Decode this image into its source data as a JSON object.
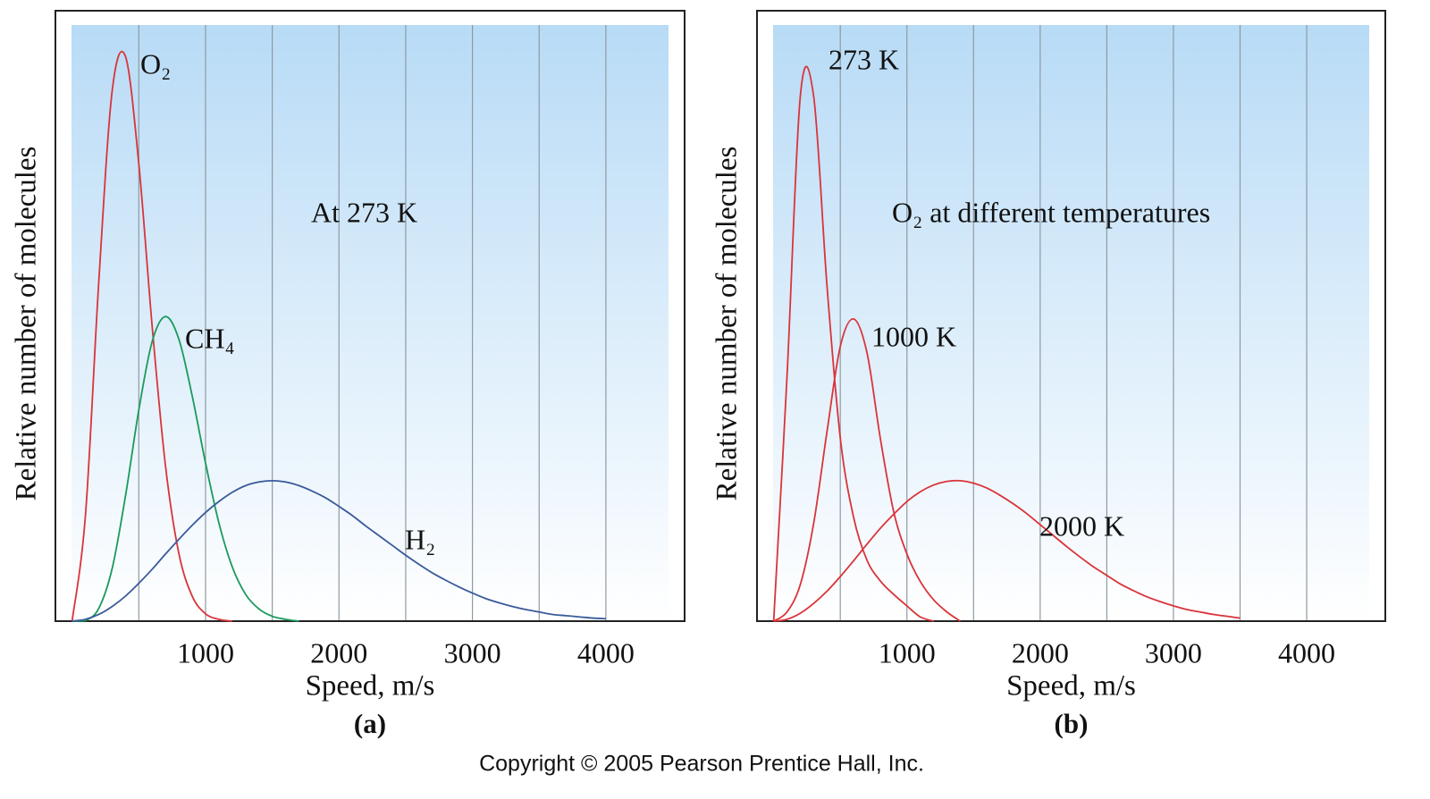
{
  "chart_data": [
    {
      "type": "line",
      "title": "At 273 K",
      "panel_label": "(a)",
      "x_label": "Speed, m/s",
      "y_label": "Relative number of molecules",
      "x": [
        0,
        100,
        200,
        300,
        400,
        500,
        600,
        700,
        800,
        900,
        1000,
        1100,
        1200,
        1300,
        1400,
        1500,
        1600,
        1700,
        1800,
        1900,
        2000,
        2100,
        2200,
        2300,
        2400,
        2500,
        2600,
        2700,
        2800,
        2900,
        3000,
        3100,
        3200,
        3300,
        3400,
        3500,
        3600,
        3700,
        3800,
        3900,
        4000
      ],
      "series": [
        {
          "name": "O₂",
          "color": "#d9343a",
          "values": [
            0,
            17.3,
            55.6,
            86.8,
            92.5,
            74.9,
            48.3,
            25.4,
            11.1,
            4.1,
            1.2,
            0.3,
            0,
            null,
            null,
            null,
            null,
            null,
            null,
            null,
            null,
            null,
            null,
            null,
            null,
            null,
            null,
            null,
            null,
            null,
            null,
            null,
            null,
            null,
            null,
            null,
            null,
            null,
            null,
            null,
            null
          ]
        },
        {
          "name": "CH₄",
          "color": "#1a9a5a",
          "values": [
            0,
            0.1,
            2.1,
            8.6,
            20.5,
            34.6,
            45.8,
            49.9,
            46.2,
            36.9,
            25.9,
            16.1,
            8.9,
            4.4,
            2.0,
            0.8,
            0.3,
            0,
            null,
            null,
            null,
            null,
            null,
            null,
            null,
            null,
            null,
            null,
            null,
            null,
            null,
            null,
            null,
            null,
            null,
            null,
            null,
            null,
            null,
            null,
            null
          ]
        },
        {
          "name": "H₂",
          "color": "#3a5a9a",
          "values": [
            0,
            0.3,
            1.1,
            2.4,
            4.1,
            6.2,
            8.5,
            11.0,
            13.4,
            15.7,
            17.8,
            19.6,
            21.1,
            22.2,
            22.8,
            23.0,
            22.8,
            22.2,
            21.3,
            20.2,
            18.8,
            17.3,
            15.6,
            14.0,
            12.4,
            10.8,
            9.3,
            7.9,
            6.7,
            5.6,
            4.6,
            3.7,
            3.0,
            2.4,
            1.9,
            1.5,
            1.1,
            0.9,
            0.7,
            0.5,
            0.4
          ]
        }
      ],
      "xlim": [
        -125,
        4590
      ],
      "ylim": [
        0,
        100
      ],
      "xticks": [
        1000,
        2000,
        3000,
        4000
      ],
      "xgrid": [
        500,
        1000,
        1500,
        2000,
        2500,
        3000,
        3500,
        4000
      ]
    },
    {
      "type": "line",
      "title": "O₂ at different temperatures",
      "panel_label": "(b)",
      "x_label": "Speed, m/s",
      "y_label": "Relative number of molecules",
      "x": [
        0,
        100,
        200,
        300,
        400,
        500,
        600,
        700,
        800,
        900,
        1000,
        1100,
        1200,
        1300,
        1400,
        1500,
        1600,
        1700,
        1800,
        1900,
        2000,
        2100,
        2200,
        2300,
        2400,
        2500,
        2600,
        2700,
        2800,
        2900,
        3000,
        3100,
        3200,
        3300,
        3400,
        3500,
        3600,
        3700,
        3800,
        3900,
        4000
      ],
      "series": [
        {
          "name": "273 K",
          "color": "#d9343a",
          "values": [
            0,
            40,
            86,
            86,
            55,
            30,
            17,
            10,
            6.6,
            4.4,
            2.5,
            0.7,
            0,
            null,
            null,
            null,
            null,
            null,
            null,
            null,
            null,
            null,
            null,
            null,
            null,
            null,
            null,
            null,
            null,
            null,
            null,
            null,
            null,
            null,
            null,
            null,
            null,
            null,
            null,
            null,
            null
          ]
        },
        {
          "name": "1000 K",
          "color": "#d9343a",
          "values": [
            0,
            1.5,
            6,
            16,
            31,
            45,
            49.5,
            44,
            30,
            18,
            11,
            6.5,
            3.5,
            1.5,
            0,
            null,
            null,
            null,
            null,
            null,
            null,
            null,
            null,
            null,
            null,
            null,
            null,
            null,
            null,
            null,
            null,
            null,
            null,
            null,
            null,
            null,
            null,
            null,
            null,
            null,
            null
          ]
        },
        {
          "name": "2000 K",
          "color": "#d9343a",
          "values": [
            0,
            0.3,
            1.3,
            2.9,
            4.9,
            7.3,
            9.9,
            12.6,
            15.2,
            17.5,
            19.6,
            21.2,
            22.3,
            22.9,
            23.0,
            22.6,
            21.8,
            20.6,
            19.2,
            17.6,
            15.8,
            14.0,
            12.2,
            10.5,
            8.9,
            7.5,
            6.1,
            5.0,
            4.0,
            3.2,
            2.5,
            1.9,
            1.5,
            1.1,
            0.8,
            0.5,
            null,
            null,
            null,
            null,
            null
          ]
        }
      ],
      "xlim": [
        -125,
        4590
      ],
      "ylim": [
        0,
        100
      ],
      "xticks": [
        1000,
        2000,
        3000,
        4000
      ],
      "xgrid": [
        500,
        1000,
        1500,
        2000,
        2500,
        3000,
        3500,
        4000
      ]
    }
  ],
  "footer": "Copyright © 2005 Pearson Prentice Hall, Inc."
}
